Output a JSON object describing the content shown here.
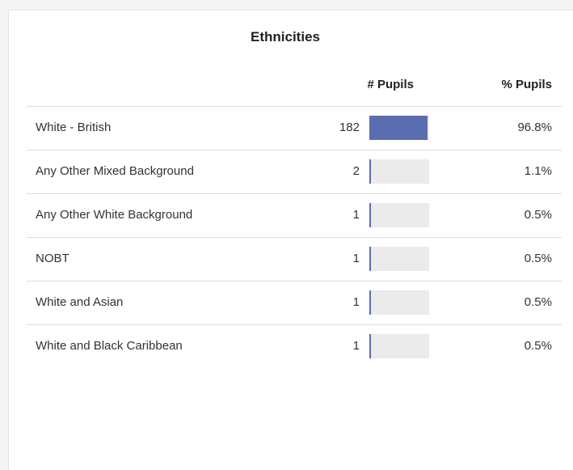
{
  "title": "Ethnicities",
  "table": {
    "headers": [
      "# Pupils",
      "% Pupils"
    ],
    "rows": [
      {
        "label": "White - British",
        "count": 182,
        "percent": 96.8,
        "percent_label": "96.8%"
      },
      {
        "label": "Any Other Mixed Background",
        "count": 2,
        "percent": 1.1,
        "percent_label": "1.1%"
      },
      {
        "label": "Any Other White Background",
        "count": 1,
        "percent": 0.5,
        "percent_label": "0.5%"
      },
      {
        "label": "NOBT",
        "count": 1,
        "percent": 0.5,
        "percent_label": "0.5%"
      },
      {
        "label": "White and Asian",
        "count": 1,
        "percent": 0.5,
        "percent_label": "0.5%"
      },
      {
        "label": "White and Black Caribbean",
        "count": 1,
        "percent": 0.5,
        "percent_label": "0.5%"
      }
    ]
  }
}
